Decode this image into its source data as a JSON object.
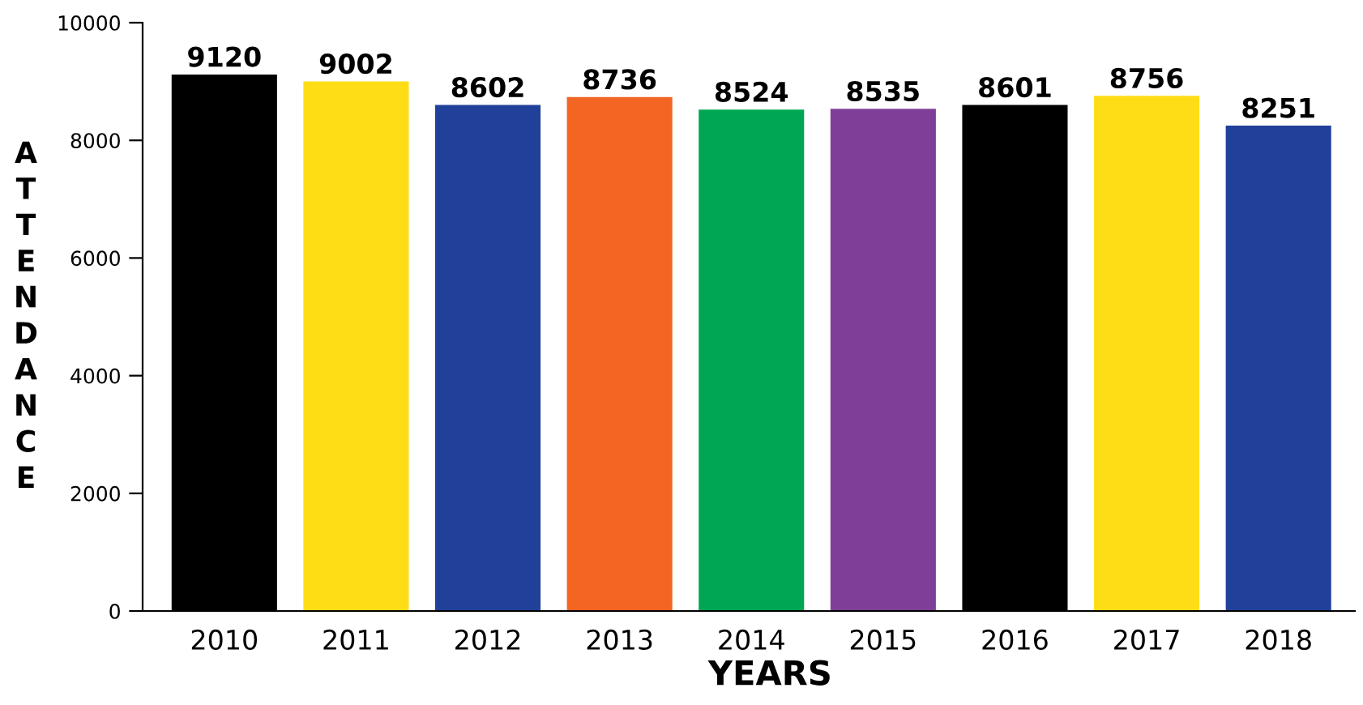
{
  "chart_data": {
    "type": "bar",
    "xlabel": "YEARS",
    "ylabel": "ATTENDANCE",
    "categories": [
      "2010",
      "2011",
      "2012",
      "2013",
      "2014",
      "2015",
      "2016",
      "2017",
      "2018"
    ],
    "values": [
      9120,
      9002,
      8602,
      8736,
      8524,
      8535,
      8601,
      8756,
      8251
    ],
    "colors": [
      "#000000",
      "#fedd17",
      "#21409a",
      "#f26522",
      "#00a651",
      "#7f3f98",
      "#000000",
      "#fedd17",
      "#21409a"
    ],
    "ylim": [
      0,
      10000
    ],
    "yticks": [
      0,
      2000,
      4000,
      6000,
      8000,
      10000
    ],
    "grid": false,
    "data_labels": true
  }
}
